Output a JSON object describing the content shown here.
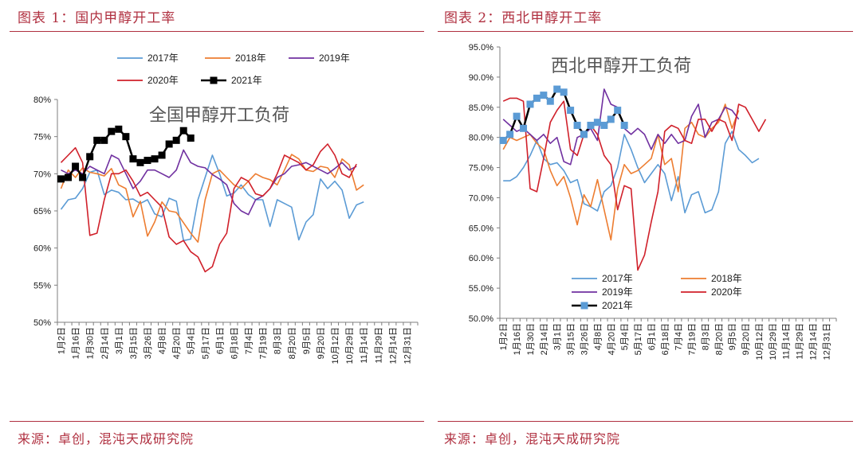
{
  "left": {
    "title": "图表 1：国内甲醇开工率",
    "source": "来源：卓创，混沌天成研究院"
  },
  "right": {
    "title": "图表 2：西北甲醇开工率",
    "source": "来源：卓创，混沌天成研究院"
  },
  "x_week_labels": [
    "1月2日",
    "1月16日",
    "1月30日",
    "2月14日",
    "3月1日",
    "3月15日",
    "3月26日",
    "4月8日",
    "4月20日",
    "5月4日",
    "5月17日",
    "6月1日",
    "6月18日",
    "7月4日",
    "7月19日",
    "8月3日",
    "8月20日",
    "9月5日",
    "9月20日",
    "10月12日",
    "10月29日",
    "11月14日",
    "11月29日",
    "12月14日",
    "12月31日"
  ],
  "chart_data": [
    {
      "type": "line",
      "title": "",
      "overlay_text": "全国甲醇开工负荷",
      "xlabel": "",
      "ylabel": "",
      "ylim": [
        50,
        80
      ],
      "yticks": [
        "50%",
        "55%",
        "60%",
        "65%",
        "70%",
        "75%",
        "80%"
      ],
      "x_count": 50,
      "legend_position": "top",
      "series": [
        {
          "name": "2017年",
          "color": "#5b9bd5",
          "marker": "none",
          "values": [
            65.2,
            66.5,
            66.7,
            68.0,
            70.2,
            70.5,
            67.2,
            67.8,
            67.5,
            66.5,
            66.6,
            66.0,
            66.5,
            64.6,
            64.2,
            66.7,
            66.3,
            61.0,
            61.2,
            66.5,
            69.5,
            72.5,
            70.0,
            67.0,
            67.4,
            68.5,
            67.2,
            66.5,
            66.5,
            62.9,
            66.5,
            66.0,
            65.5,
            61.1,
            63.5,
            64.5,
            69.3,
            68.0,
            69.0,
            67.8,
            64.0,
            65.8,
            66.2,
            null,
            null,
            null,
            null,
            null,
            null,
            null
          ]
        },
        {
          "name": "2018年",
          "color": "#ed7d31",
          "marker": "none",
          "values": [
            68.0,
            70.5,
            69.5,
            70.8,
            70.2,
            70.0,
            69.7,
            70.7,
            68.5,
            68.0,
            64.2,
            66.3,
            61.6,
            63.5,
            66.2,
            65.0,
            64.8,
            63.4,
            62.0,
            60.8,
            66.5,
            70.0,
            70.5,
            69.5,
            68.5,
            68.0,
            69.0,
            70.0,
            69.5,
            69.2,
            68.5,
            70.5,
            72.6,
            72.0,
            70.5,
            70.3,
            71.0,
            70.8,
            69.5,
            72.0,
            71.2,
            67.8,
            68.5,
            null,
            null,
            null,
            null,
            null,
            null,
            null
          ]
        },
        {
          "name": "2019年",
          "color": "#7030a0",
          "marker": "none",
          "values": [
            70.5,
            70.0,
            70.5,
            70.0,
            71.0,
            70.5,
            70.0,
            72.5,
            72.0,
            70.0,
            68.0,
            69.0,
            70.5,
            70.5,
            70.0,
            69.5,
            70.5,
            73.2,
            71.5,
            71.0,
            70.8,
            69.9,
            69.3,
            68.5,
            66.0,
            65.0,
            64.5,
            66.5,
            67.0,
            68.0,
            69.5,
            70.0,
            71.0,
            71.2,
            71.5,
            71.0,
            70.5,
            70.0,
            70.7,
            71.5,
            70.5,
            71.0,
            null,
            null,
            null,
            null,
            null,
            null,
            null,
            null
          ]
        },
        {
          "name": "2020年",
          "color": "#d0202a",
          "marker": "none",
          "values": [
            71.5,
            72.5,
            73.5,
            71.5,
            61.7,
            62.0,
            66.5,
            70.0,
            70.0,
            70.5,
            69.0,
            67.0,
            67.5,
            66.5,
            65.5,
            61.5,
            60.5,
            61.0,
            59.5,
            58.8,
            56.8,
            57.5,
            60.5,
            62.0,
            68.0,
            69.5,
            69.0,
            67.3,
            67.0,
            68.0,
            70.0,
            72.5,
            72.0,
            71.5,
            70.5,
            71.2,
            73.0,
            74.0,
            72.5,
            70.0,
            69.5,
            71.3,
            null,
            null,
            null,
            null,
            null,
            null,
            null,
            null
          ]
        },
        {
          "name": "2021年",
          "color": "#000000",
          "marker": "square",
          "values": [
            69.3,
            69.5,
            71.0,
            69.5,
            72.3,
            74.5,
            74.5,
            75.7,
            76.0,
            75.0,
            72.0,
            71.5,
            71.8,
            72.0,
            72.5,
            74.0,
            74.5,
            75.8,
            74.8,
            null,
            null,
            null,
            null,
            null,
            null,
            null,
            null,
            null,
            null,
            null,
            null,
            null,
            null,
            null,
            null,
            null,
            null,
            null,
            null,
            null,
            null,
            null,
            null,
            null,
            null,
            null,
            null,
            null,
            null,
            null
          ]
        }
      ]
    },
    {
      "type": "line",
      "title": "",
      "overlay_text": "西北甲醇开工负荷",
      "xlabel": "",
      "ylabel": "",
      "ylim": [
        50,
        95
      ],
      "yticks": [
        "50.0%",
        "55.0%",
        "60.0%",
        "65.0%",
        "70.0%",
        "75.0%",
        "80.0%",
        "85.0%",
        "90.0%",
        "95.0%"
      ],
      "x_count": 50,
      "legend_position": "bottom-left",
      "series": [
        {
          "name": "2017年",
          "color": "#5b9bd5",
          "marker": "none",
          "values": [
            72.8,
            72.8,
            73.5,
            75.0,
            77.0,
            79.5,
            76.5,
            75.5,
            75.8,
            74.5,
            72.5,
            73.0,
            69.0,
            68.5,
            67.8,
            71.0,
            72.0,
            75.0,
            80.5,
            78.0,
            75.0,
            72.5,
            74.0,
            75.5,
            74.0,
            69.5,
            73.5,
            67.5,
            70.5,
            71.0,
            67.5,
            68.0,
            71.0,
            79.0,
            81.0,
            78.0,
            77.0,
            75.8,
            76.5,
            null,
            null,
            null,
            null,
            null,
            null,
            null,
            null,
            null,
            null,
            null
          ]
        },
        {
          "name": "2018年",
          "color": "#ed7d31",
          "marker": "none",
          "values": [
            78.0,
            80.0,
            79.5,
            80.0,
            80.5,
            79.0,
            78.0,
            74.5,
            72.0,
            73.5,
            70.0,
            65.5,
            70.5,
            68.5,
            73.0,
            68.0,
            63.0,
            71.5,
            75.5,
            74.0,
            74.5,
            75.5,
            76.5,
            80.5,
            75.5,
            76.5,
            71.0,
            81.5,
            82.5,
            80.5,
            80.0,
            81.5,
            82.5,
            85.5,
            81.5,
            84.5,
            null,
            null,
            null,
            null,
            null,
            null,
            null,
            null,
            null,
            null,
            null,
            null,
            null,
            null
          ]
        },
        {
          "name": "2019年",
          "color": "#7030a0",
          "marker": "none",
          "values": [
            83.0,
            82.0,
            81.0,
            81.5,
            80.5,
            79.5,
            80.5,
            79.0,
            80.0,
            76.0,
            75.5,
            80.0,
            80.5,
            81.5,
            79.5,
            88.0,
            85.5,
            85.0,
            81.5,
            80.5,
            81.5,
            80.5,
            78.0,
            80.5,
            79.0,
            80.5,
            79.0,
            79.5,
            83.5,
            85.5,
            80.0,
            82.5,
            83.0,
            85.0,
            84.5,
            83.0,
            null,
            null,
            null,
            null,
            null,
            null,
            null,
            null,
            null,
            null,
            null,
            null,
            null,
            null
          ]
        },
        {
          "name": "2020年",
          "color": "#d0202a",
          "marker": "none",
          "values": [
            86.0,
            86.5,
            86.5,
            86.0,
            71.5,
            71.0,
            76.5,
            82.5,
            84.5,
            86.0,
            78.0,
            77.0,
            80.5,
            82.0,
            80.5,
            77.0,
            75.5,
            68.0,
            72.0,
            71.5,
            58.0,
            60.5,
            66.0,
            71.0,
            81.0,
            82.0,
            81.5,
            79.5,
            79.0,
            83.0,
            83.0,
            81.0,
            83.0,
            82.5,
            79.5,
            85.5,
            85.0,
            83.0,
            81.0,
            83.0,
            null,
            null,
            null,
            null,
            null,
            null,
            null,
            null,
            null,
            null
          ]
        },
        {
          "name": "2021年",
          "color": "#000000",
          "marker": "square",
          "marker_color": "#5b9bd5",
          "values": [
            79.5,
            80.5,
            83.5,
            81.5,
            85.5,
            86.5,
            87.0,
            86.0,
            88.0,
            87.5,
            84.5,
            82.0,
            80.5,
            82.0,
            82.5,
            82.0,
            83.0,
            84.5,
            82.0,
            null,
            null,
            null,
            null,
            null,
            null,
            null,
            null,
            null,
            null,
            null,
            null,
            null,
            null,
            null,
            null,
            null,
            null,
            null,
            null,
            null,
            null,
            null,
            null,
            null,
            null,
            null,
            null,
            null,
            null,
            null
          ]
        }
      ]
    }
  ]
}
